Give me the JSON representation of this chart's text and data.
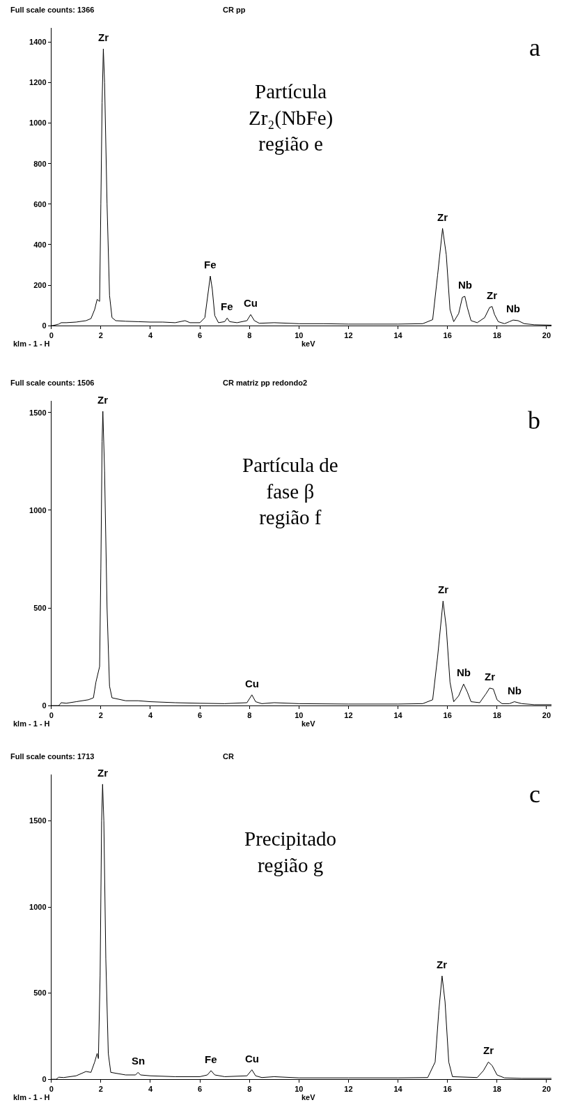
{
  "chart_data": [
    {
      "type": "line",
      "title": "Full scale counts: 1366",
      "subtitle": "CR pp",
      "xlabel": "keV",
      "xlim": [
        0,
        20.2
      ],
      "xticks": [
        0,
        2,
        4,
        6,
        8,
        10,
        12,
        14,
        16,
        18,
        20
      ],
      "ylim": [
        0,
        1470
      ],
      "yticks": [
        0,
        200,
        400,
        600,
        800,
        1000,
        1200,
        1400
      ],
      "marker": "none",
      "line_style": "solid",
      "x": [
        0,
        0.1,
        0.3,
        0.4,
        0.6,
        1.0,
        1.4,
        1.6,
        1.75,
        1.85,
        1.95,
        2.0,
        2.05,
        2.1,
        2.15,
        2.25,
        2.35,
        2.45,
        2.6,
        3,
        3.5,
        4,
        4.5,
        5,
        5.4,
        5.6,
        6.0,
        6.2,
        6.35,
        6.42,
        6.5,
        6.6,
        6.75,
        7.0,
        7.1,
        7.2,
        7.5,
        7.9,
        8.05,
        8.2,
        8.4,
        9,
        10,
        11,
        12,
        13,
        14,
        15,
        15.4,
        15.6,
        15.8,
        15.95,
        16.1,
        16.25,
        16.45,
        16.6,
        16.7,
        16.8,
        16.95,
        17.2,
        17.5,
        17.7,
        17.8,
        17.9,
        18.05,
        18.3,
        18.5,
        18.65,
        18.85,
        19.1,
        19.5,
        20.2
      ],
      "series": [
        {
          "color": "#000000",
          "values": [
            0,
            2,
            8,
            15,
            15,
            18,
            25,
            35,
            80,
            130,
            120,
            600,
            1100,
            1366,
            1200,
            600,
            150,
            40,
            25,
            22,
            20,
            18,
            18,
            15,
            25,
            15,
            15,
            40,
            180,
            245,
            180,
            50,
            15,
            20,
            38,
            20,
            15,
            25,
            55,
            25,
            12,
            15,
            10,
            10,
            8,
            8,
            8,
            10,
            30,
            250,
            480,
            350,
            80,
            20,
            60,
            140,
            145,
            90,
            25,
            15,
            40,
            90,
            95,
            55,
            20,
            10,
            20,
            28,
            25,
            10,
            5,
            3
          ]
        }
      ],
      "annotations": [
        "Partícula\nZr₂(NbFe)\nregião e",
        "a",
        "klm - 1 - H",
        {
          "text": "Zr",
          "x": 2.1,
          "y": 1366
        },
        {
          "text": "Fe",
          "x": 6.42,
          "y": 245
        },
        {
          "text": "Fe",
          "x": 7.1,
          "y": 38
        },
        {
          "text": "Cu",
          "x": 8.05,
          "y": 55
        },
        {
          "text": "Zr",
          "x": 15.8,
          "y": 480
        },
        {
          "text": "Nb",
          "x": 16.7,
          "y": 145
        },
        {
          "text": "Zr",
          "x": 17.8,
          "y": 95
        },
        {
          "text": "Nb",
          "x": 18.65,
          "y": 28
        }
      ]
    },
    {
      "type": "line",
      "title": "Full scale counts: 1506",
      "subtitle": "CR matriz pp redondo2",
      "xlabel": "keV",
      "xlim": [
        0,
        20.2
      ],
      "xticks": [
        0,
        2,
        4,
        6,
        8,
        10,
        12,
        14,
        16,
        18,
        20
      ],
      "ylim": [
        0,
        1560
      ],
      "yticks": [
        0,
        500,
        1000,
        1500
      ],
      "marker": "none",
      "line_style": "solid",
      "x": [
        0,
        0.3,
        0.4,
        0.6,
        1.0,
        1.5,
        1.7,
        1.8,
        1.95,
        2.0,
        2.05,
        2.08,
        2.15,
        2.25,
        2.35,
        2.45,
        3,
        3.5,
        4,
        5,
        6,
        7,
        7.9,
        8.1,
        8.25,
        8.5,
        9,
        10,
        12,
        14,
        15,
        15.4,
        15.6,
        15.82,
        15.95,
        16.1,
        16.25,
        16.45,
        16.65,
        16.8,
        16.95,
        17.3,
        17.55,
        17.7,
        17.85,
        18.0,
        18.2,
        18.5,
        18.7,
        19.0,
        19.5,
        20.2
      ],
      "series": [
        {
          "color": "#000000",
          "values": [
            0,
            0,
            15,
            12,
            20,
            30,
            40,
            120,
            200,
            700,
            1350,
            1506,
            1200,
            500,
            100,
            40,
            25,
            25,
            20,
            15,
            12,
            10,
            15,
            55,
            20,
            10,
            15,
            10,
            8,
            8,
            10,
            30,
            250,
            535,
            400,
            120,
            20,
            50,
            110,
            70,
            20,
            15,
            60,
            90,
            85,
            30,
            10,
            10,
            20,
            10,
            5,
            5
          ]
        }
      ],
      "annotations": [
        "Partícula de\nfase β\nregião f",
        "b",
        "klm - 1 - H",
        {
          "text": "Zr",
          "x": 2.08,
          "y": 1506
        },
        {
          "text": "Cu",
          "x": 8.1,
          "y": 55
        },
        {
          "text": "Zr",
          "x": 15.82,
          "y": 535
        },
        {
          "text": "Nb",
          "x": 16.65,
          "y": 110
        },
        {
          "text": "Zr",
          "x": 17.7,
          "y": 90
        },
        {
          "text": "Nb",
          "x": 18.7,
          "y": 20
        }
      ]
    },
    {
      "type": "line",
      "title": "Full scale counts: 1713",
      "subtitle": "CR",
      "xlabel": "keV",
      "xlim": [
        0,
        20.2
      ],
      "xticks": [
        0,
        2,
        4,
        6,
        8,
        10,
        12,
        14,
        16,
        18,
        20
      ],
      "ylim": [
        0,
        1770
      ],
      "yticks": [
        0,
        500,
        1000,
        1500
      ],
      "marker": "none",
      "line_style": "solid",
      "x": [
        0,
        0.2,
        0.3,
        0.5,
        1.0,
        1.4,
        1.6,
        1.75,
        1.85,
        1.9,
        1.97,
        2.03,
        2.07,
        2.12,
        2.2,
        2.3,
        2.4,
        3,
        3.4,
        3.5,
        3.6,
        4,
        5,
        6,
        6.3,
        6.45,
        6.6,
        7,
        7.9,
        8.1,
        8.25,
        8.5,
        9,
        10,
        12,
        14,
        15.2,
        15.5,
        15.65,
        15.78,
        15.9,
        16.05,
        16.2,
        17.2,
        17.45,
        17.65,
        17.8,
        18.0,
        18.3,
        19,
        20.2
      ],
      "series": [
        {
          "color": "#000000",
          "values": [
            0,
            0,
            12,
            10,
            20,
            45,
            40,
            100,
            150,
            120,
            600,
            1500,
            1713,
            1500,
            700,
            150,
            40,
            25,
            25,
            40,
            25,
            20,
            15,
            15,
            25,
            50,
            25,
            15,
            20,
            55,
            20,
            10,
            15,
            8,
            8,
            8,
            10,
            100,
            400,
            600,
            450,
            100,
            15,
            10,
            50,
            100,
            80,
            25,
            8,
            5,
            5
          ]
        }
      ],
      "annotations": [
        "Precipitado\nregião g",
        "c",
        "klm - 1 - H",
        {
          "text": "Zr",
          "x": 2.07,
          "y": 1713
        },
        {
          "text": "Sn",
          "x": 3.5,
          "y": 40
        },
        {
          "text": "Fe",
          "x": 6.45,
          "y": 50
        },
        {
          "text": "Cu",
          "x": 8.1,
          "y": 55
        },
        {
          "text": "Zr",
          "x": 15.78,
          "y": 600
        },
        {
          "text": "Zr",
          "x": 17.65,
          "y": 100
        }
      ]
    }
  ]
}
